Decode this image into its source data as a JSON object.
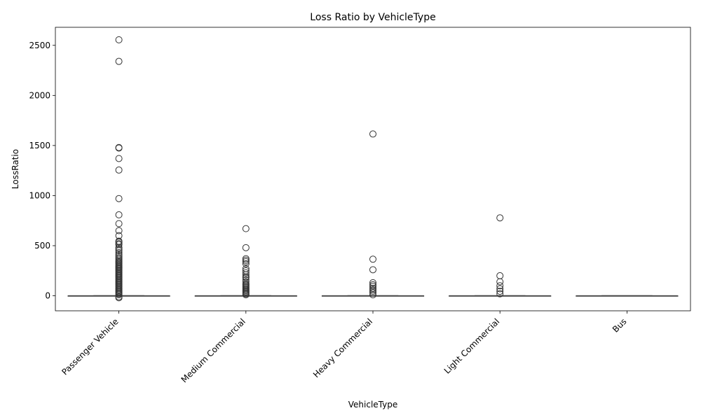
{
  "chart_data": {
    "type": "box",
    "title": "Loss Ratio by VehicleType",
    "xlabel": "VehicleType",
    "ylabel": "LossRatio",
    "ylim": [
      -150,
      2680
    ],
    "yticks": [
      0,
      500,
      1000,
      1500,
      2000,
      2500
    ],
    "grid": false,
    "categories": [
      "Passenger Vehicle",
      "Medium Commercial",
      "Heavy Commercial",
      "Light Commercial",
      "Bus"
    ],
    "colors": {
      "box_fill": "#3b74b3",
      "line": "#444444",
      "outlier_edge": "#333333"
    },
    "boxes": [
      {
        "category": "Passenger Vehicle",
        "whisker_low": 0,
        "q1": 0,
        "median": 0,
        "q3": 0,
        "whisker_high": 0,
        "outliers": [
          2555,
          2340,
          1480,
          1475,
          1370,
          1255,
          970,
          808,
          720,
          650,
          600,
          545,
          535,
          520,
          510,
          480,
          465,
          450,
          430,
          410,
          395,
          380,
          365,
          350,
          340,
          330,
          320,
          310,
          300,
          290,
          280,
          270,
          260,
          250,
          240,
          230,
          220,
          210,
          200,
          190,
          180,
          170,
          160,
          150,
          140,
          130,
          120,
          110,
          100,
          90,
          80,
          70,
          60,
          50,
          40,
          30,
          20,
          10,
          -10,
          -20
        ]
      },
      {
        "category": "Medium Commercial",
        "whisker_low": 0,
        "q1": 0,
        "median": 0,
        "q3": 0,
        "whisker_high": 0,
        "outliers": [
          670,
          480,
          370,
          355,
          340,
          320,
          270,
          250,
          230,
          210,
          190,
          180,
          160,
          140,
          120,
          110,
          100,
          90,
          80,
          70,
          60,
          50,
          40,
          30,
          20,
          10
        ]
      },
      {
        "category": "Heavy Commercial",
        "whisker_low": 0,
        "q1": 0,
        "median": 0,
        "q3": 0,
        "whisker_high": 0,
        "outliers": [
          1615,
          365,
          260,
          130,
          110,
          95,
          75,
          60,
          45,
          30,
          10
        ]
      },
      {
        "category": "Light Commercial",
        "whisker_low": 0,
        "q1": 0,
        "median": 0,
        "q3": 0,
        "whisker_high": 0,
        "outliers": [
          778,
          200,
          140,
          100,
          70,
          45,
          20
        ]
      },
      {
        "category": "Bus",
        "whisker_low": 0,
        "q1": 0,
        "median": 0,
        "q3": 0,
        "whisker_high": 0,
        "outliers": []
      }
    ]
  }
}
